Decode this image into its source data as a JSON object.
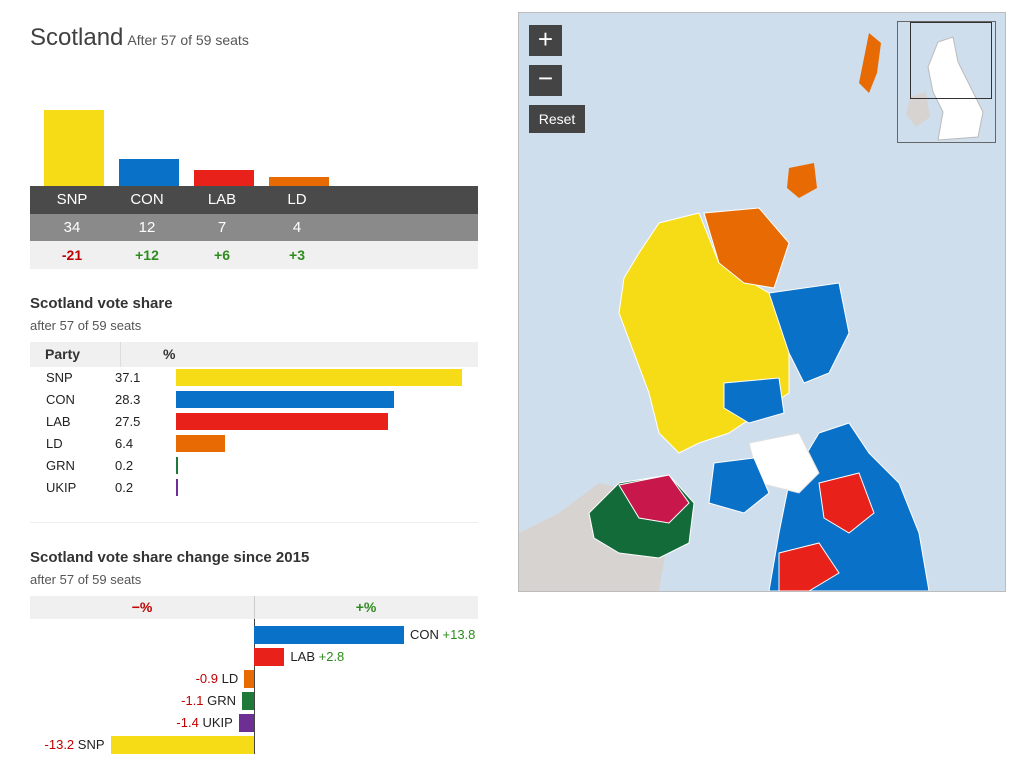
{
  "header": {
    "title": "Scotland",
    "subtitle": "After 57 of 59 seats"
  },
  "colors": {
    "SNP": "#f6dc17",
    "CON": "#0a71c8",
    "LAB": "#e8221b",
    "LD": "#e76a02",
    "GRN": "#1f7a3a",
    "UKIP": "#6d2f91"
  },
  "chart_data": [
    {
      "type": "bar",
      "name": "seats",
      "categories": [
        "SNP",
        "CON",
        "LAB",
        "LD"
      ],
      "values": [
        34,
        12,
        7,
        4
      ],
      "changes": [
        "-21",
        "+12",
        "+6",
        "+3"
      ]
    },
    {
      "type": "bar",
      "title": "Scotland vote share",
      "subtitle": "after 57 of 59 seats",
      "col_party": "Party",
      "col_pct": "%",
      "categories": [
        "SNP",
        "CON",
        "LAB",
        "LD",
        "GRN",
        "UKIP"
      ],
      "values": [
        37.1,
        28.3,
        27.5,
        6.4,
        0.2,
        0.2
      ],
      "labels": [
        "37.1",
        "28.3",
        "27.5",
        "6.4",
        "0.2",
        "0.2"
      ]
    },
    {
      "type": "bar",
      "title": "Scotland vote share change since 2015",
      "subtitle": "after 57 of 59 seats",
      "neg_label": "−%",
      "pos_label": "+%",
      "categories": [
        "CON",
        "LAB",
        "LD",
        "GRN",
        "UKIP",
        "SNP"
      ],
      "values": [
        13.8,
        2.8,
        -0.9,
        -1.1,
        -1.4,
        -13.2
      ],
      "labels": [
        "+13.8",
        "+2.8",
        "-0.9",
        "-1.1",
        "-1.4",
        "-13.2"
      ]
    }
  ],
  "map": {
    "zoom_in": "+",
    "zoom_out": "−",
    "reset": "Reset"
  }
}
